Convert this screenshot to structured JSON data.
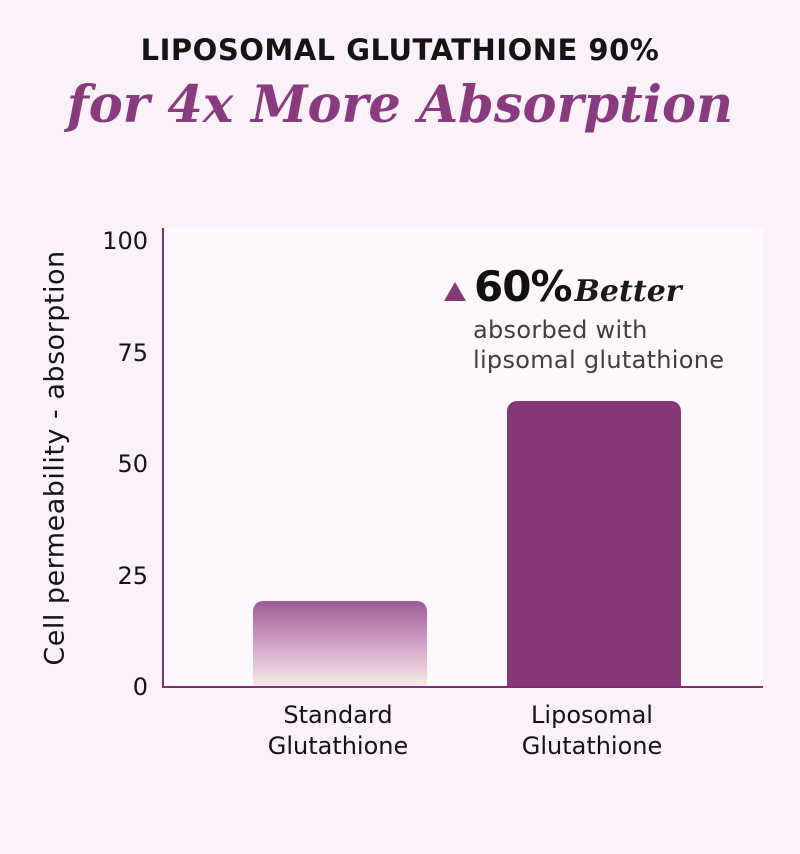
{
  "colors": {
    "page_background": "#fbf1f9",
    "plot_background": "#fdf8fc",
    "axis_line": "#7f2e70",
    "accent_purple": "#853876",
    "subtitle_purple": "#8a3a7e",
    "gradient_bar_top": "#9c5b93",
    "gradient_bar_mid": "#cf9ec6",
    "gradient_bar_bottom": "#f9ebe5",
    "title_text": "#141414",
    "annotation_gray_text": "#3f3f3f"
  },
  "chart_data": {
    "type": "bar",
    "title": "LIPOSOMAL GLUTATHIONE 90%",
    "subtitle": "for 4x More Absorption",
    "xlabel": "",
    "ylabel": "Cell permeability - absorption",
    "categories": [
      "Standard Glutathione",
      "Liposomal Glutathione"
    ],
    "values": [
      19,
      64
    ],
    "yticks": [
      0,
      25,
      50,
      75,
      100
    ],
    "ylim": [
      0,
      100
    ],
    "grid": false,
    "legend": false,
    "bar_styles": [
      {
        "fill": "gradient",
        "top": "#9c5b93",
        "mid": "#cf9ec6",
        "bottom": "#f9ebe5"
      },
      {
        "fill": "solid",
        "color": "#853876"
      }
    ],
    "annotation": {
      "symbol": "up-triangle",
      "symbol_color": "#853876",
      "value": "60%",
      "emphasis": "Better",
      "lines": [
        "absorbed with",
        "lipsomal glutathione"
      ]
    }
  }
}
